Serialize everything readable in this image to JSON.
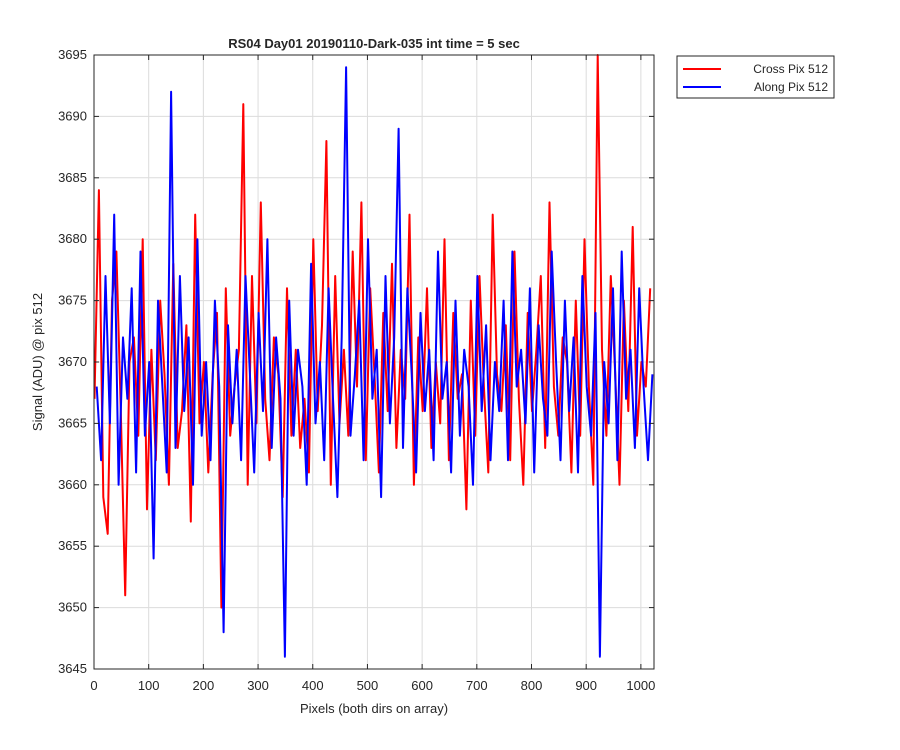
{
  "chart_data": {
    "type": "line",
    "title": "RS04 Day01 20190110-Dark-035 int time = 5 sec",
    "xlabel": "Pixels (both dirs on array)",
    "ylabel": "Signal (ADU) @ pix 512",
    "xlim": [
      0,
      1024
    ],
    "ylim": [
      3645,
      3695
    ],
    "xticks": [
      0,
      100,
      200,
      300,
      400,
      500,
      600,
      700,
      800,
      900,
      1000
    ],
    "yticks": [
      3645,
      3650,
      3655,
      3660,
      3665,
      3670,
      3675,
      3680,
      3685,
      3690,
      3695
    ],
    "grid": true,
    "legend_position": "outside-top-right",
    "series": [
      {
        "name": "Cross Pix 512",
        "color": "#ff0000",
        "x_start": 1,
        "x_step": 8,
        "values": [
          3667,
          3684,
          3659,
          3656,
          3675,
          3679,
          3666,
          3651,
          3670,
          3672,
          3664,
          3680,
          3658,
          3671,
          3662,
          3675,
          3669,
          3660,
          3678,
          3663,
          3666,
          3673,
          3657,
          3682,
          3665,
          3670,
          3661,
          3669,
          3674,
          3650,
          3676,
          3664,
          3668,
          3671,
          3691,
          3660,
          3677,
          3665,
          3683,
          3667,
          3662,
          3672,
          3669,
          3659,
          3676,
          3664,
          3671,
          3663,
          3667,
          3661,
          3680,
          3666,
          3673,
          3688,
          3660,
          3677,
          3665,
          3671,
          3664,
          3679,
          3668,
          3683,
          3662,
          3676,
          3669,
          3661,
          3674,
          3666,
          3678,
          3663,
          3671,
          3667,
          3682,
          3660,
          3672,
          3666,
          3676,
          3663,
          3670,
          3665,
          3680,
          3662,
          3674,
          3667,
          3669,
          3658,
          3675,
          3664,
          3677,
          3668,
          3661,
          3682,
          3669,
          3666,
          3673,
          3662,
          3679,
          3667,
          3660,
          3674,
          3666,
          3671,
          3677,
          3663,
          3683,
          3668,
          3664,
          3672,
          3670,
          3661,
          3675,
          3664,
          3680,
          3668,
          3660,
          3695,
          3671,
          3664,
          3677,
          3669,
          3660,
          3675,
          3666,
          3681,
          3664,
          3670,
          3668,
          3676
        ]
      },
      {
        "name": "Along Pix 512",
        "color": "#0000ff",
        "x_start": 5,
        "x_step": 8,
        "values": [
          3668,
          3662,
          3677,
          3665,
          3682,
          3660,
          3672,
          3667,
          3676,
          3661,
          3679,
          3664,
          3670,
          3654,
          3675,
          3668,
          3661,
          3692,
          3663,
          3677,
          3666,
          3672,
          3660,
          3680,
          3664,
          3670,
          3662,
          3675,
          3668,
          3648,
          3673,
          3665,
          3671,
          3662,
          3677,
          3669,
          3661,
          3674,
          3666,
          3680,
          3663,
          3672,
          3667,
          3646,
          3675,
          3664,
          3671,
          3668,
          3660,
          3678,
          3665,
          3670,
          3662,
          3676,
          3667,
          3659,
          3672,
          3694,
          3664,
          3669,
          3675,
          3662,
          3680,
          3667,
          3671,
          3659,
          3677,
          3665,
          3672,
          3689,
          3663,
          3676,
          3669,
          3661,
          3674,
          3666,
          3671,
          3662,
          3679,
          3667,
          3670,
          3661,
          3675,
          3664,
          3671,
          3668,
          3660,
          3677,
          3666,
          3673,
          3662,
          3670,
          3666,
          3675,
          3662,
          3679,
          3668,
          3671,
          3665,
          3676,
          3661,
          3673,
          3667,
          3664,
          3679,
          3670,
          3662,
          3675,
          3666,
          3672,
          3661,
          3677,
          3668,
          3664,
          3674,
          3646,
          3670,
          3665,
          3676,
          3662,
          3679,
          3667,
          3671,
          3663,
          3676,
          3668,
          3662,
          3669
        ]
      }
    ]
  }
}
